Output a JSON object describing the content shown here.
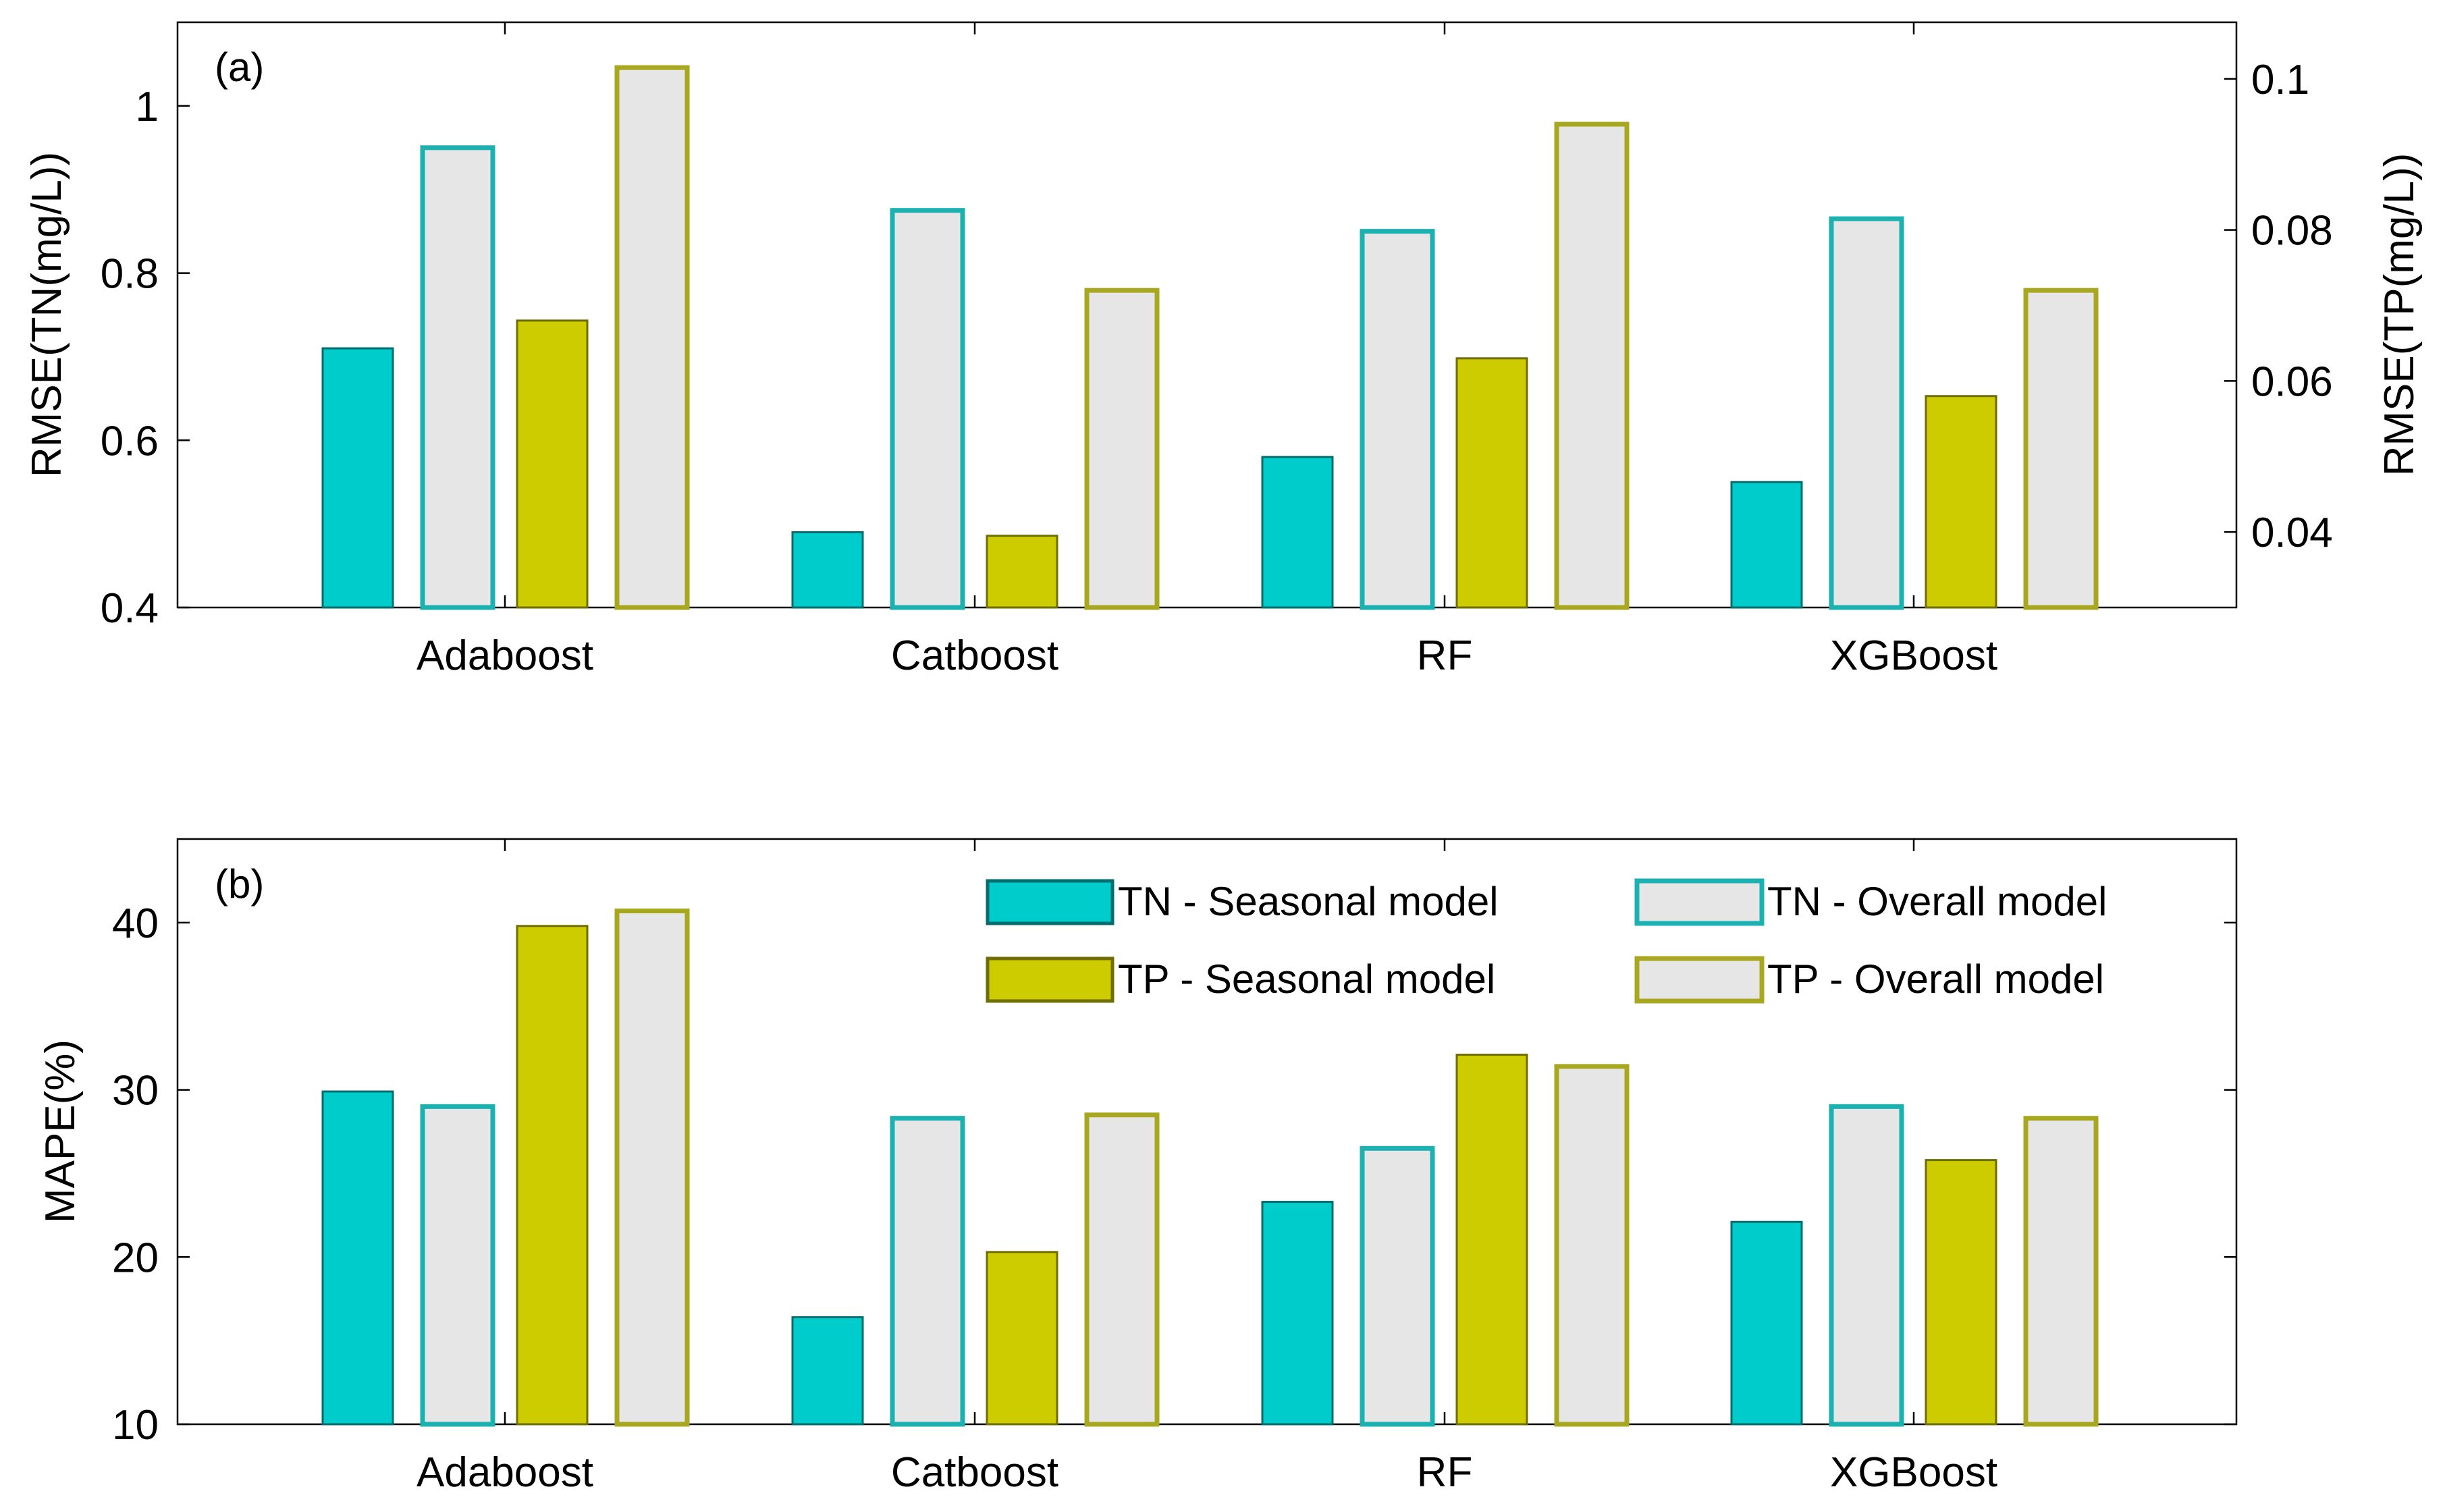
{
  "chart_data": [
    {
      "type": "bar",
      "panel_label": "(a)",
      "categories": [
        "Adaboost",
        "Catboost",
        "RF",
        "XGBoost"
      ],
      "ylabel": "RMSE(TN(mg/L))",
      "ylim": [
        0.4,
        1.1
      ],
      "yticks": [
        0.4,
        0.6,
        0.8,
        1
      ],
      "ytick_labels": [
        "0.4",
        "0.6",
        "0.8",
        "1"
      ],
      "y2label": "RMSE(TP(mg/L))",
      "y2lim": [
        0.03,
        0.1075
      ],
      "y2ticks": [
        0.04,
        0.06,
        0.08,
        0.1
      ],
      "y2tick_labels": [
        "0.04",
        "0.06",
        "0.08",
        "0.1"
      ],
      "series": [
        {
          "name": "TN - Seasonal model",
          "axis": "left",
          "values": [
            0.71,
            0.49,
            0.58,
            0.55
          ]
        },
        {
          "name": "TN - Overall model",
          "axis": "left",
          "values": [
            0.95,
            0.875,
            0.85,
            0.865
          ]
        },
        {
          "name": "TP - Seasonal model",
          "axis": "right",
          "values": [
            0.068,
            0.0395,
            0.063,
            0.058
          ]
        },
        {
          "name": "TP - Overall model",
          "axis": "right",
          "values": [
            0.1015,
            0.072,
            0.094,
            0.072
          ]
        }
      ]
    },
    {
      "type": "bar",
      "panel_label": "(b)",
      "categories": [
        "Adaboost",
        "Catboost",
        "RF",
        "XGBoost"
      ],
      "ylabel": "MAPE(%)",
      "ylim": [
        10,
        45
      ],
      "yticks": [
        10,
        20,
        30,
        40
      ],
      "ytick_labels": [
        "10",
        "20",
        "30",
        "40"
      ],
      "legend_position": "top-right",
      "series": [
        {
          "name": "TN - Seasonal model",
          "values": [
            29.9,
            16.4,
            23.3,
            22.1
          ]
        },
        {
          "name": "TN - Overall model",
          "values": [
            29.0,
            28.3,
            26.5,
            29.0
          ]
        },
        {
          "name": "TP - Seasonal model",
          "values": [
            39.8,
            20.3,
            32.1,
            25.8
          ]
        },
        {
          "name": "TP - Overall model",
          "values": [
            40.7,
            28.5,
            31.4,
            28.3
          ]
        }
      ]
    }
  ],
  "styles": {
    "tn_seasonal": {
      "fill": "#00CCCC",
      "stroke": "#006E6E"
    },
    "tn_overall": {
      "fill": "#E6E6E6",
      "stroke": "#1BB1B1"
    },
    "tp_seasonal": {
      "fill": "#CCCC00",
      "stroke": "#6E6E00"
    },
    "tp_overall": {
      "fill": "#E6E6E6",
      "stroke": "#A8A820"
    }
  }
}
